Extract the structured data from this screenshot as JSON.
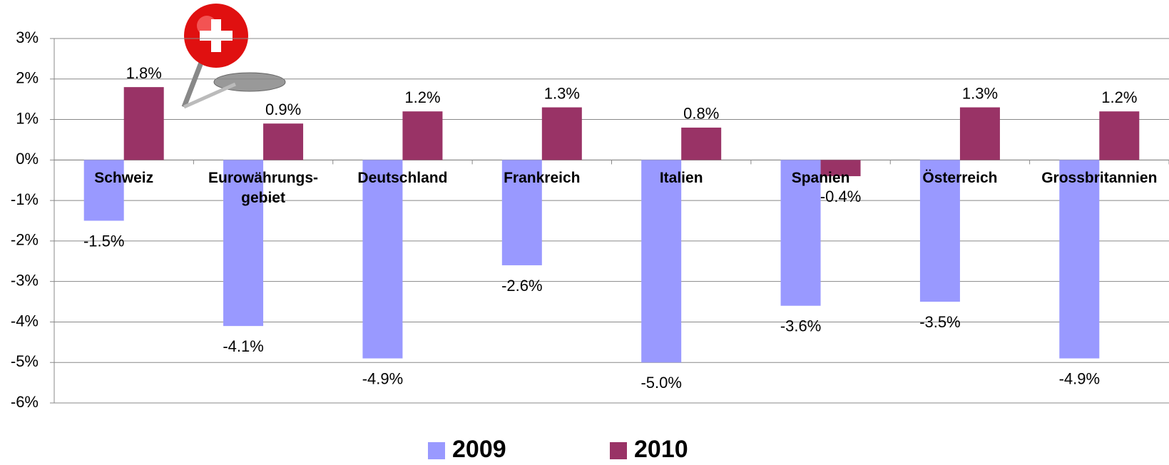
{
  "chart_data": {
    "type": "bar",
    "categories": [
      "Schweiz",
      "Eurowährungs-\ngebiet",
      "Deutschland",
      "Frankreich",
      "Italien",
      "Spanien",
      "Österreich",
      "Grossbritannien"
    ],
    "series": [
      {
        "name": "2009",
        "color": "#9999ff",
        "values": [
          -1.5,
          -4.1,
          -4.9,
          -2.6,
          -5.0,
          -3.6,
          -3.5,
          -4.9
        ],
        "value_labels": [
          "-1.5%",
          "-4.1%",
          "-4.9%",
          "-2.6%",
          "-5.0%",
          "-3.6%",
          "-3.5%",
          "-4.9%"
        ]
      },
      {
        "name": "2010",
        "color": "#993366",
        "values": [
          1.8,
          0.9,
          1.2,
          1.3,
          0.8,
          -0.4,
          1.3,
          1.2
        ],
        "value_labels": [
          "1.8%",
          "0.9%",
          "1.2%",
          "1.3%",
          "0.8%",
          "-0.4%",
          "1.3%",
          "1.2%"
        ]
      }
    ],
    "ylim": [
      -6,
      3
    ],
    "yticks": [
      {
        "value": -6,
        "label": "-6%"
      },
      {
        "value": -5,
        "label": "-5%"
      },
      {
        "value": -4,
        "label": "-4%"
      },
      {
        "value": -3,
        "label": "-3%"
      },
      {
        "value": -2,
        "label": "-2%"
      },
      {
        "value": -1,
        "label": "-1%"
      },
      {
        "value": 0,
        "label": "0%"
      },
      {
        "value": 1,
        "label": "1%"
      },
      {
        "value": 2,
        "label": "2%"
      },
      {
        "value": 3,
        "label": "3%"
      }
    ],
    "grid": true,
    "legend": "bottom"
  }
}
